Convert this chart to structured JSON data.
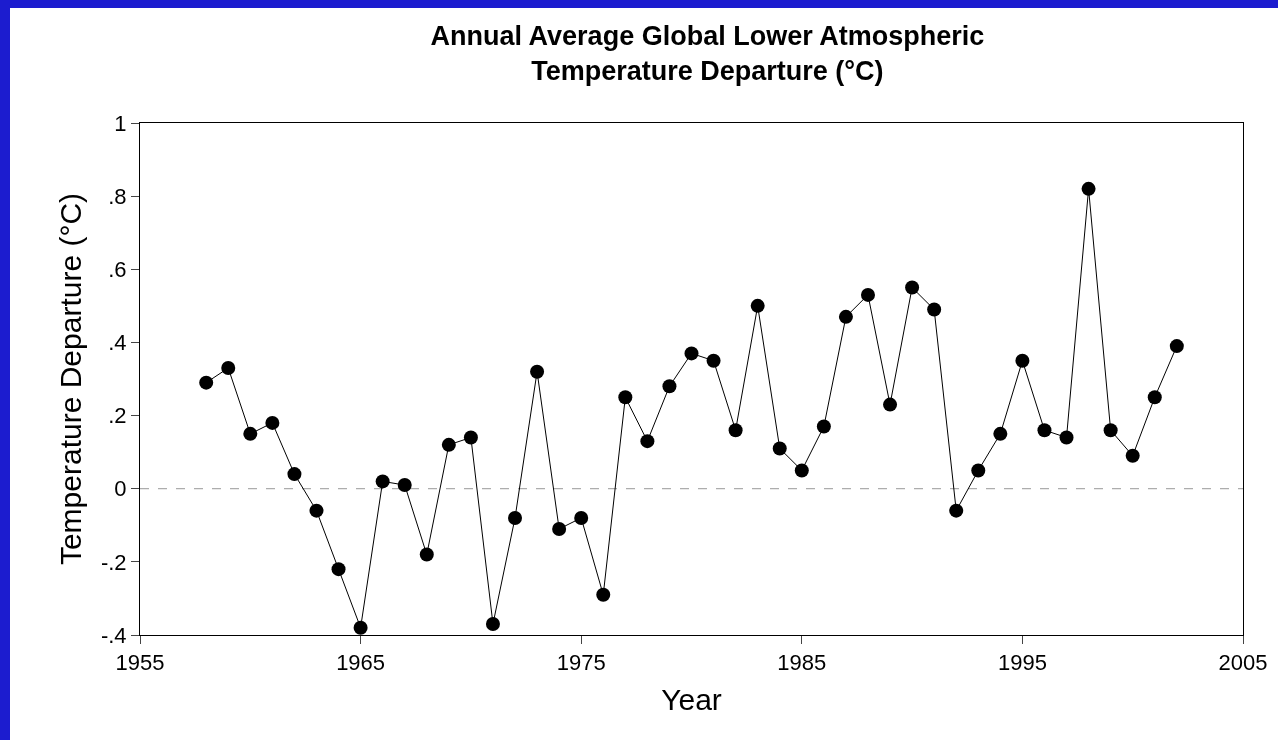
{
  "chart_data": {
    "type": "line",
    "title": "Annual Average Global Lower Atmospheric\nTemperature Departure (°C)",
    "xlabel": "Year",
    "ylabel": "Temperature Departure (°C)",
    "x": [
      1958,
      1959,
      1960,
      1961,
      1962,
      1963,
      1964,
      1965,
      1966,
      1967,
      1968,
      1969,
      1970,
      1971,
      1972,
      1973,
      1974,
      1975,
      1976,
      1977,
      1978,
      1979,
      1980,
      1981,
      1982,
      1983,
      1984,
      1985,
      1986,
      1987,
      1988,
      1989,
      1990,
      1991,
      1992,
      1993,
      1994,
      1995,
      1996,
      1997,
      1998,
      1999,
      2000,
      2001,
      2002
    ],
    "series": [
      {
        "color": "#000000",
        "values": [
          0.29,
          0.33,
          0.15,
          0.18,
          0.04,
          -0.06,
          -0.22,
          -0.38,
          0.02,
          0.01,
          -0.18,
          0.12,
          0.14,
          -0.37,
          -0.08,
          0.32,
          -0.11,
          -0.08,
          -0.29,
          0.25,
          0.13,
          0.28,
          0.37,
          0.35,
          0.16,
          0.5,
          0.11,
          0.05,
          0.17,
          0.47,
          0.53,
          0.23,
          0.55,
          0.49,
          -0.06,
          0.05,
          0.15,
          0.35,
          0.16,
          0.14,
          0.82,
          0.16,
          0.09,
          0.25,
          0.39
        ]
      }
    ],
    "xlim": [
      1955,
      2005
    ],
    "xticks": [
      1955,
      1965,
      1975,
      1985,
      1995,
      2005
    ],
    "ylim": [
      -0.4,
      1
    ],
    "yticks": [
      {
        "value": -0.4,
        "label": "-.4"
      },
      {
        "value": -0.2,
        "label": "-.2"
      },
      0,
      {
        "value": 0.2,
        "label": ".2"
      },
      {
        "value": 0.4,
        "label": ".4"
      },
      {
        "value": 0.6,
        "label": ".6"
      },
      {
        "value": 0.8,
        "label": ".8"
      },
      1
    ],
    "ref_lines": [
      {
        "axis": "y",
        "value": 0,
        "color": "#999999",
        "line_style": "dashed"
      }
    ],
    "grid": false,
    "legend": false,
    "marker": "circle",
    "line_style": "solid"
  }
}
